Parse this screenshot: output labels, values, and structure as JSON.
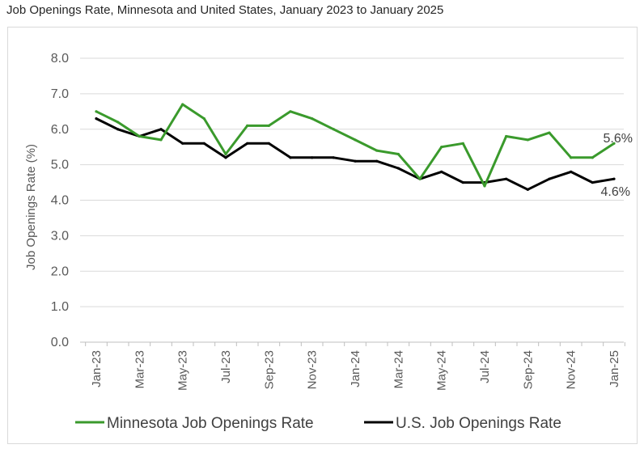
{
  "title": "Job Openings Rate, Minnesota and United States, January 2023 to January 2025",
  "chart_data": {
    "type": "line",
    "title": "Job Openings Rate, Minnesota and United States, January 2023 to January 2025",
    "xlabel": "",
    "ylabel": "Job Openings Rate (%)",
    "ylim": [
      0,
      8
    ],
    "yticks": [
      "0.0",
      "1.0",
      "2.0",
      "3.0",
      "4.0",
      "5.0",
      "6.0",
      "7.0",
      "8.0"
    ],
    "x": [
      "Jan-23",
      "Feb-23",
      "Mar-23",
      "Apr-23",
      "May-23",
      "Jun-23",
      "Jul-23",
      "Aug-23",
      "Sep-23",
      "Oct-23",
      "Nov-23",
      "Dec-23",
      "Jan-24",
      "Feb-24",
      "Mar-24",
      "Apr-24",
      "May-24",
      "Jun-24",
      "Jul-24",
      "Aug-24",
      "Sep-24",
      "Oct-24",
      "Nov-24",
      "Dec-24",
      "Jan-25"
    ],
    "xtick_labels": [
      "Jan-23",
      "",
      "Mar-23",
      "",
      "May-23",
      "",
      "Jul-23",
      "",
      "Sep-23",
      "",
      "Nov-23",
      "",
      "Jan-24",
      "",
      "Mar-24",
      "",
      "May-24",
      "",
      "Jul-24",
      "",
      "Sep-24",
      "",
      "Nov-24",
      "",
      "Jan-25"
    ],
    "grid": "horizontal",
    "legend": "bottom",
    "series": [
      {
        "name": "Minnesota Job Openings Rate",
        "color": "#3a9a2c",
        "values": [
          6.5,
          6.2,
          5.8,
          5.7,
          6.7,
          6.3,
          5.3,
          6.1,
          6.1,
          6.5,
          6.3,
          6.0,
          5.7,
          5.4,
          5.3,
          4.6,
          5.5,
          5.6,
          4.4,
          5.8,
          5.7,
          5.9,
          5.2,
          5.2,
          5.6
        ],
        "end_label": "5.6%"
      },
      {
        "name": "U.S. Job Openings Rate",
        "color": "#000000",
        "values": [
          6.3,
          6.0,
          5.8,
          6.0,
          5.6,
          5.6,
          5.2,
          5.6,
          5.6,
          5.2,
          5.2,
          5.2,
          5.1,
          5.1,
          4.9,
          4.6,
          4.8,
          4.5,
          4.5,
          4.6,
          4.3,
          4.6,
          4.8,
          4.5,
          4.6
        ],
        "end_label": "4.6%"
      }
    ]
  }
}
